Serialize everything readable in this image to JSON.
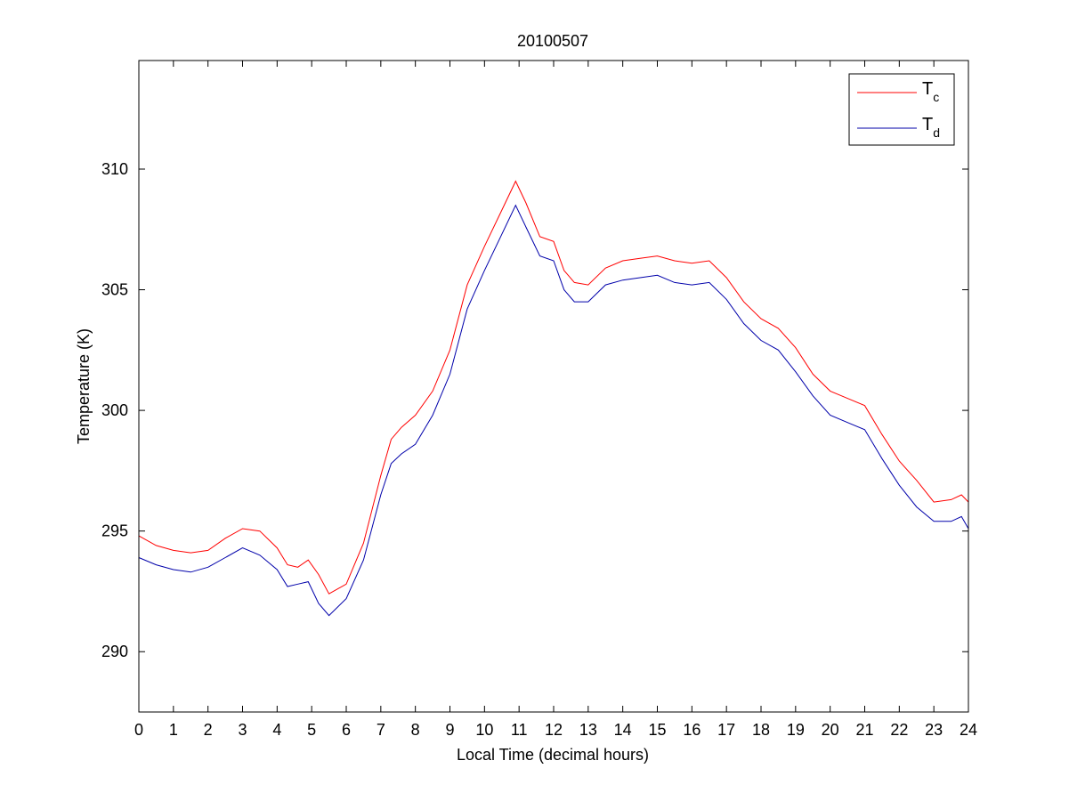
{
  "chart_data": {
    "type": "line",
    "title": "20100507",
    "xlabel": "Local Time (decimal hours)",
    "ylabel": "Temperature (K)",
    "xlim": [
      0,
      24
    ],
    "ylim": [
      287.5,
      314.5
    ],
    "x_ticks": [
      0,
      1,
      2,
      3,
      4,
      5,
      6,
      7,
      8,
      9,
      10,
      11,
      12,
      13,
      14,
      15,
      16,
      17,
      18,
      19,
      20,
      21,
      22,
      23,
      24
    ],
    "y_ticks": [
      290,
      295,
      300,
      305,
      310
    ],
    "grid": false,
    "legend_position": "top-right",
    "series": [
      {
        "name": "T",
        "name_subscript": "c",
        "color": "#ff0000",
        "x": [
          0,
          0.5,
          1,
          1.5,
          2,
          2.5,
          3,
          3.5,
          4,
          4.3,
          4.6,
          4.9,
          5.2,
          5.5,
          6,
          6.5,
          7,
          7.3,
          7.6,
          8,
          8.5,
          9,
          9.5,
          10,
          10.5,
          10.9,
          11.2,
          11.6,
          12,
          12.3,
          12.6,
          13,
          13.5,
          14,
          14.5,
          15,
          15.5,
          16,
          16.5,
          17,
          17.5,
          18,
          18.5,
          19,
          19.5,
          20,
          20.5,
          21,
          21.5,
          22,
          22.5,
          23,
          23.5,
          23.8,
          24
        ],
        "y": [
          294.8,
          294.4,
          294.2,
          294.1,
          294.2,
          294.7,
          295.1,
          295,
          294.3,
          293.6,
          293.5,
          293.8,
          293.2,
          292.4,
          292.8,
          294.5,
          297.3,
          298.8,
          299.3,
          299.8,
          300.8,
          302.5,
          305.2,
          306.8,
          308.3,
          309.5,
          308.6,
          307.2,
          307.0,
          305.8,
          305.3,
          305.2,
          305.9,
          306.2,
          306.3,
          306.4,
          306.2,
          306.1,
          306.2,
          305.5,
          304.5,
          303.8,
          303.4,
          302.6,
          301.5,
          300.8,
          300.5,
          300.2,
          299,
          297.9,
          297.1,
          296.2,
          296.3,
          296.5,
          296.2
        ]
      },
      {
        "name": "T",
        "name_subscript": "d",
        "color": "#0000aa",
        "x": [
          0,
          0.5,
          1,
          1.5,
          2,
          2.5,
          3,
          3.5,
          4,
          4.3,
          4.6,
          4.9,
          5.2,
          5.5,
          6,
          6.5,
          7,
          7.3,
          7.6,
          8,
          8.5,
          9,
          9.5,
          10,
          10.5,
          10.9,
          11.2,
          11.6,
          12,
          12.3,
          12.6,
          13,
          13.5,
          14,
          14.5,
          15,
          15.5,
          16,
          16.5,
          17,
          17.5,
          18,
          18.5,
          19,
          19.5,
          20,
          20.5,
          21,
          21.5,
          22,
          22.5,
          23,
          23.5,
          23.8,
          24
        ],
        "y": [
          293.9,
          293.6,
          293.4,
          293.3,
          293.5,
          293.9,
          294.3,
          294,
          293.4,
          292.7,
          292.8,
          292.9,
          292.0,
          291.5,
          292.2,
          293.8,
          296.5,
          297.8,
          298.2,
          298.6,
          299.8,
          301.5,
          304.2,
          305.8,
          307.3,
          308.5,
          307.6,
          306.4,
          306.2,
          305.0,
          304.5,
          304.5,
          305.2,
          305.4,
          305.5,
          305.6,
          305.3,
          305.2,
          305.3,
          304.6,
          303.6,
          302.9,
          302.5,
          301.6,
          300.6,
          299.8,
          299.5,
          299.2,
          298,
          296.9,
          296.0,
          295.4,
          295.4,
          295.6,
          295.1
        ]
      }
    ]
  }
}
